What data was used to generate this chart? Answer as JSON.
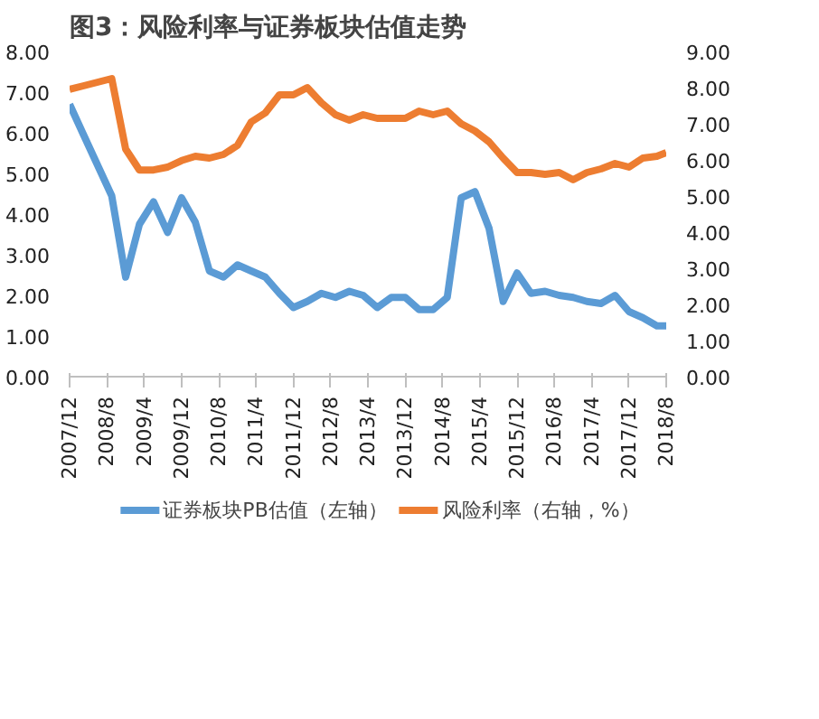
{
  "chart_data": {
    "type": "line",
    "title": "图3：风险利率与证券板块估值走势",
    "x": [
      "2007-12",
      "2008-03",
      "2008-06",
      "2008-09",
      "2008-12",
      "2009-03",
      "2009-06",
      "2009-09",
      "2009-12",
      "2010-03",
      "2010-06",
      "2010-09",
      "2010-12",
      "2011-03",
      "2011-06",
      "2011-09",
      "2011-12",
      "2012-03",
      "2012-06",
      "2012-09",
      "2012-12",
      "2013-03",
      "2013-06",
      "2013-09",
      "2013-12",
      "2014-03",
      "2014-06",
      "2014-09",
      "2014-12",
      "2015-03",
      "2015-06",
      "2015-09",
      "2015-12",
      "2016-03",
      "2016-06",
      "2016-09",
      "2016-12",
      "2017-03",
      "2017-06",
      "2017-09",
      "2017-12",
      "2018-03",
      "2018-06",
      "2018-08"
    ],
    "series": [
      {
        "name": "证券板块PB估值（左轴）",
        "color": "#5b9bd5",
        "values": [
          6.7,
          5.95,
          5.2,
          4.45,
          2.45,
          3.75,
          4.3,
          3.55,
          4.4,
          3.8,
          2.6,
          2.45,
          2.75,
          2.6,
          2.45,
          2.05,
          1.7,
          1.85,
          2.05,
          1.95,
          2.1,
          2.0,
          1.7,
          1.95,
          1.95,
          1.65,
          1.65,
          1.95,
          4.4,
          4.55,
          3.65,
          1.85,
          2.55,
          2.05,
          2.1,
          2.0,
          1.95,
          1.85,
          1.8,
          2.0,
          1.6,
          1.45,
          1.25,
          1.25
        ]
      },
      {
        "name": "风险利率（右轴，%）",
        "color": "#ed7d31",
        "axis": "y2",
        "values": [
          7.95,
          8.05,
          8.15,
          8.25,
          6.3,
          5.72,
          5.72,
          5.8,
          5.98,
          6.1,
          6.05,
          6.15,
          6.4,
          7.05,
          7.3,
          7.8,
          7.8,
          8.0,
          7.58,
          7.25,
          7.1,
          7.25,
          7.15,
          7.15,
          7.15,
          7.35,
          7.25,
          7.35,
          7.0,
          6.8,
          6.5,
          6.05,
          5.65,
          5.65,
          5.6,
          5.65,
          5.45,
          5.65,
          5.75,
          5.9,
          5.8,
          6.05,
          6.1,
          6.2
        ]
      }
    ],
    "xlim": [
      "2007-12",
      "2018-08"
    ],
    "xticks": [
      {
        "value": "2007-12",
        "label": "2007/12"
      },
      {
        "value": "2008-08",
        "label": "2008/8"
      },
      {
        "value": "2009-04",
        "label": "2009/4"
      },
      {
        "value": "2009-12",
        "label": "2009/12"
      },
      {
        "value": "2010-08",
        "label": "2010/8"
      },
      {
        "value": "2011-04",
        "label": "2011/4"
      },
      {
        "value": "2011-12",
        "label": "2011/12"
      },
      {
        "value": "2012-08",
        "label": "2012/8"
      },
      {
        "value": "2013-04",
        "label": "2013/4"
      },
      {
        "value": "2013-12",
        "label": "2013/12"
      },
      {
        "value": "2014-08",
        "label": "2014/8"
      },
      {
        "value": "2015-04",
        "label": "2015/4"
      },
      {
        "value": "2015-12",
        "label": "2015/12"
      },
      {
        "value": "2016-08",
        "label": "2016/8"
      },
      {
        "value": "2017-04",
        "label": "2017/4"
      },
      {
        "value": "2017-12",
        "label": "2017/12"
      },
      {
        "value": "2018-08",
        "label": "2018/8"
      }
    ],
    "ylim": [
      0,
      8
    ],
    "yticks": [
      {
        "value": 0,
        "label": "0.00"
      },
      {
        "value": 1,
        "label": "1.00"
      },
      {
        "value": 2,
        "label": "2.00"
      },
      {
        "value": 3,
        "label": "3.00"
      },
      {
        "value": 4,
        "label": "4.00"
      },
      {
        "value": 5,
        "label": "5.00"
      },
      {
        "value": 6,
        "label": "6.00"
      },
      {
        "value": 7,
        "label": "7.00"
      },
      {
        "value": 8,
        "label": "8.00"
      }
    ],
    "y2lim": [
      0,
      9
    ],
    "y2ticks": [
      {
        "value": 0,
        "label": "0.00"
      },
      {
        "value": 1,
        "label": "1.00"
      },
      {
        "value": 2,
        "label": "2.00"
      },
      {
        "value": 3,
        "label": "3.00"
      },
      {
        "value": 4,
        "label": "4.00"
      },
      {
        "value": 5,
        "label": "5.00"
      },
      {
        "value": 6,
        "label": "6.00"
      },
      {
        "value": 7,
        "label": "7.00"
      },
      {
        "value": 8,
        "label": "8.00"
      },
      {
        "value": 9,
        "label": "9.00"
      }
    ],
    "grid": false,
    "legend": "bottom",
    "marker": "none",
    "line_style": "solid"
  }
}
